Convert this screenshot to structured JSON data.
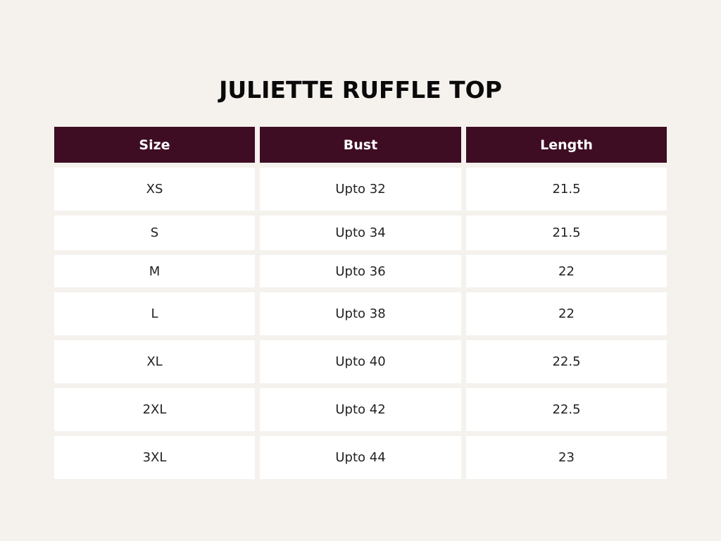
{
  "title": "JULIETTE RUFFLE TOP",
  "colors": {
    "header_bg": "#3f0d23",
    "page_bg": "#f5f2ee",
    "cell_bg": "#ffffff"
  },
  "table": {
    "headers": [
      "Size",
      "Bust",
      "Length"
    ],
    "rows": [
      [
        "XS",
        "Upto 32",
        "21.5"
      ],
      [
        "S",
        "Upto 34",
        "21.5"
      ],
      [
        "M",
        "Upto 36",
        "22"
      ],
      [
        "L",
        "Upto 38",
        "22"
      ],
      [
        "XL",
        "Upto 40",
        "22.5"
      ],
      [
        "2XL",
        "Upto 42",
        "22.5"
      ],
      [
        "3XL",
        "Upto 44",
        "23"
      ]
    ]
  }
}
